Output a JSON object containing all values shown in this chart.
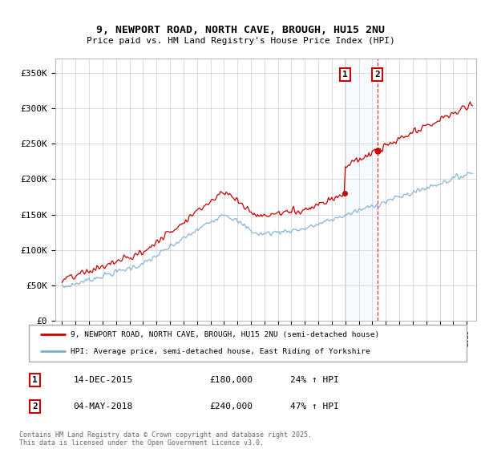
{
  "title": "9, NEWPORT ROAD, NORTH CAVE, BROUGH, HU15 2NU",
  "subtitle": "Price paid vs. HM Land Registry's House Price Index (HPI)",
  "legend_line1": "9, NEWPORT ROAD, NORTH CAVE, BROUGH, HU15 2NU (semi-detached house)",
  "legend_line2": "HPI: Average price, semi-detached house, East Riding of Yorkshire",
  "transaction1_date": "14-DEC-2015",
  "transaction1_price": "£180,000",
  "transaction1_hpi": "24% ↑ HPI",
  "transaction1_year": 2015.96,
  "transaction1_price_val": 180000,
  "transaction2_date": "04-MAY-2018",
  "transaction2_price": "£240,000",
  "transaction2_hpi": "47% ↑ HPI",
  "transaction2_year": 2018.37,
  "transaction2_price_val": 240000,
  "red_color": "#cc0000",
  "blue_color": "#7aadd4",
  "shading_color": "#ddeeff",
  "footer": "Contains HM Land Registry data © Crown copyright and database right 2025.\nThis data is licensed under the Open Government Licence v3.0.",
  "ylim_min": 0,
  "ylim_max": 370000,
  "yticks": [
    0,
    50000,
    100000,
    150000,
    200000,
    250000,
    300000,
    350000
  ],
  "ytick_labels": [
    "£0",
    "£50K",
    "£100K",
    "£150K",
    "£200K",
    "£250K",
    "£300K",
    "£350K"
  ],
  "xlim_min": 1994.5,
  "xlim_max": 2025.7
}
